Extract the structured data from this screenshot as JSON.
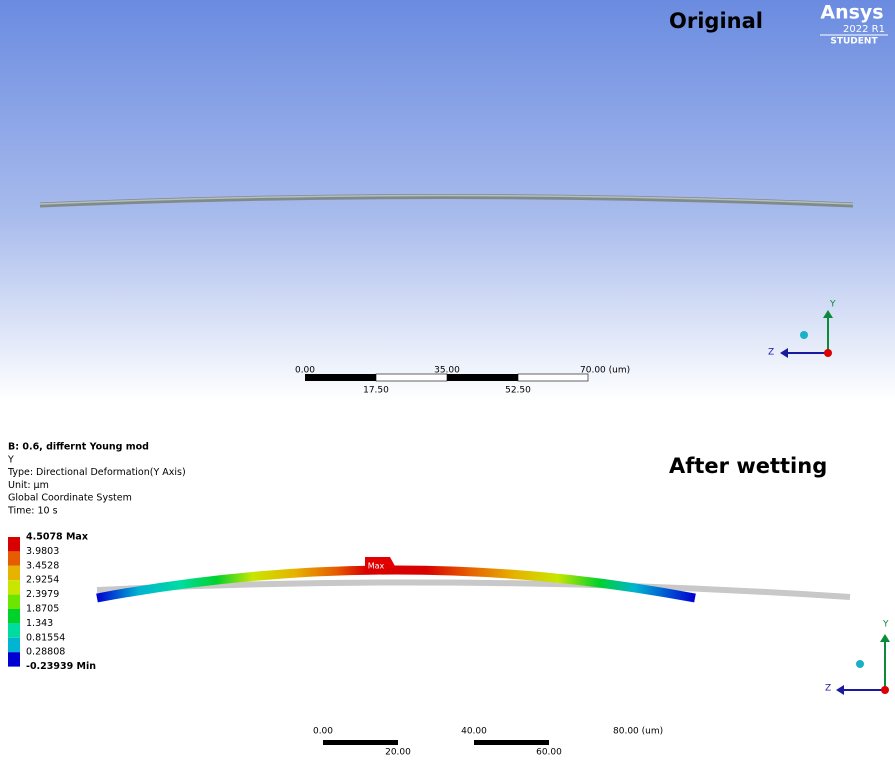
{
  "top_panel": {
    "title": "Original",
    "logo": {
      "brand": "Ansys",
      "version": "2022 R1",
      "edition": "STUDENT"
    },
    "scale": {
      "top_labels": [
        "0.00",
        "35.00",
        "70.00 (um)"
      ],
      "bottom_labels": [
        "17.50",
        "52.50"
      ]
    },
    "axes": {
      "y": "Y",
      "z": "Z"
    }
  },
  "bottom_panel": {
    "title": "After wetting",
    "info": [
      "B: 0.6, differnt Young mod",
      "Y",
      "Type: Directional Deformation(Y Axis)",
      "Unit: µm",
      "Global Coordinate System",
      "Time: 10 s"
    ],
    "legend": [
      "4.5078 Max",
      "3.9803",
      "3.4528",
      "2.9254",
      "2.3979",
      "1.8705",
      "1.343",
      "0.81554",
      "0.28808",
      "-0.23939 Min"
    ],
    "max_marker": "Max",
    "scale": {
      "top_labels": [
        "0.00",
        "40.00",
        "80.00 (um)"
      ],
      "bottom_labels": [
        "20.00",
        "60.00"
      ]
    },
    "axes": {
      "y": "Y",
      "z": "Z"
    }
  }
}
